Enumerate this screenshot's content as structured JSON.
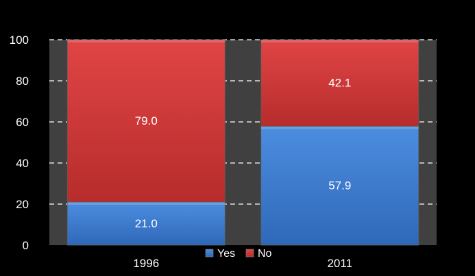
{
  "chart_data": {
    "type": "bar",
    "stacked": true,
    "categories": [
      "1996",
      "2011"
    ],
    "series": [
      {
        "name": "Yes",
        "values": [
          21.0,
          57.9
        ],
        "color": "#3f7fd0"
      },
      {
        "name": "No",
        "values": [
          79.0,
          42.1
        ],
        "color": "#d03a3a"
      }
    ],
    "data_labels": [
      [
        "21.0",
        "57.9"
      ],
      [
        "79.0",
        "42.1"
      ]
    ],
    "ylim": [
      0,
      100
    ],
    "yticks": [
      0,
      20,
      40,
      60,
      80,
      100
    ],
    "grid": true,
    "legend_position": "bottom",
    "plot_background": "#404040",
    "background": "#000000"
  }
}
